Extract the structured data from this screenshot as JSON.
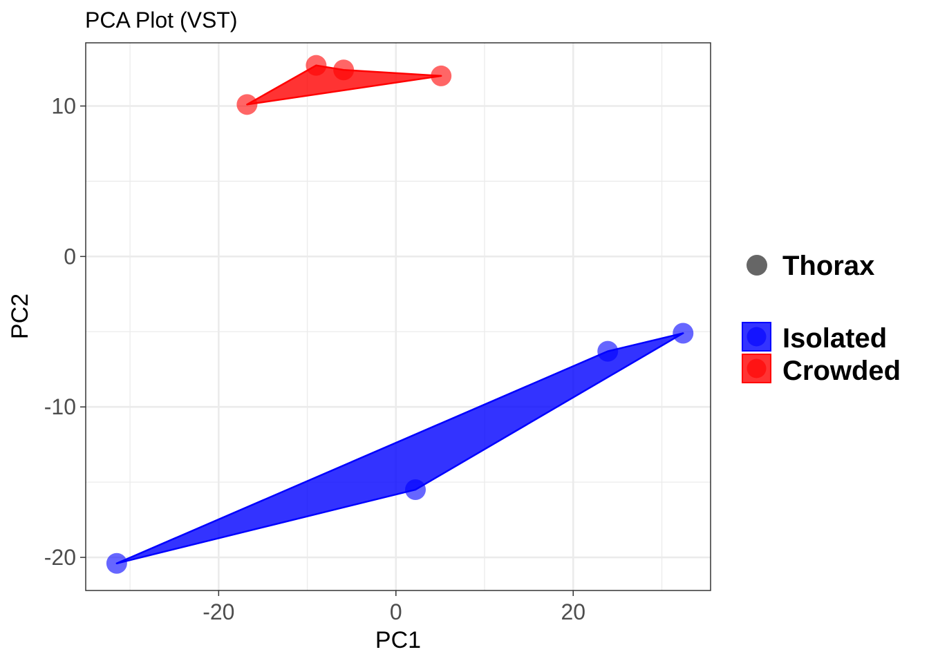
{
  "chart_data": {
    "type": "scatter",
    "title": "PCA Plot (VST)",
    "xlabel": "PC1",
    "ylabel": "PC2",
    "xlim": [
      -35,
      35.5
    ],
    "ylim": [
      -22.2,
      14.2
    ],
    "x_ticks": [
      -20,
      0,
      20
    ],
    "y_ticks": [
      -20,
      -10,
      0,
      10
    ],
    "x_tick_labels": [
      "-20",
      "0",
      "20"
    ],
    "y_tick_labels": [
      "-20",
      "-10",
      "0",
      "10"
    ],
    "x_minor_gridlines": [
      -30,
      -10,
      10,
      30
    ],
    "y_minor_gridlines": [
      -15,
      -5,
      5
    ],
    "grid": true,
    "legend_position": "right",
    "shape_legend": {
      "label": "Thorax",
      "color": "#666666"
    },
    "series": [
      {
        "name": "Isolated",
        "color": "#0000ff",
        "points": [
          {
            "x": -31.5,
            "y": -20.4
          },
          {
            "x": 2.2,
            "y": -15.5
          },
          {
            "x": 23.9,
            "y": -6.3
          },
          {
            "x": 32.4,
            "y": -5.1
          }
        ],
        "hull": [
          {
            "x": -31.5,
            "y": -20.4
          },
          {
            "x": 2.2,
            "y": -15.5
          },
          {
            "x": 32.4,
            "y": -5.1
          },
          {
            "x": 23.9,
            "y": -6.3
          }
        ]
      },
      {
        "name": "Crowded",
        "color": "#ff0000",
        "points": [
          {
            "x": -16.8,
            "y": 10.1
          },
          {
            "x": -9.0,
            "y": 12.7
          },
          {
            "x": -5.9,
            "y": 12.4
          },
          {
            "x": 5.1,
            "y": 12.0
          }
        ],
        "hull": [
          {
            "x": -16.8,
            "y": 10.1
          },
          {
            "x": 5.1,
            "y": 12.0
          },
          {
            "x": -5.9,
            "y": 12.4
          },
          {
            "x": -9.0,
            "y": 12.7
          }
        ]
      }
    ]
  }
}
